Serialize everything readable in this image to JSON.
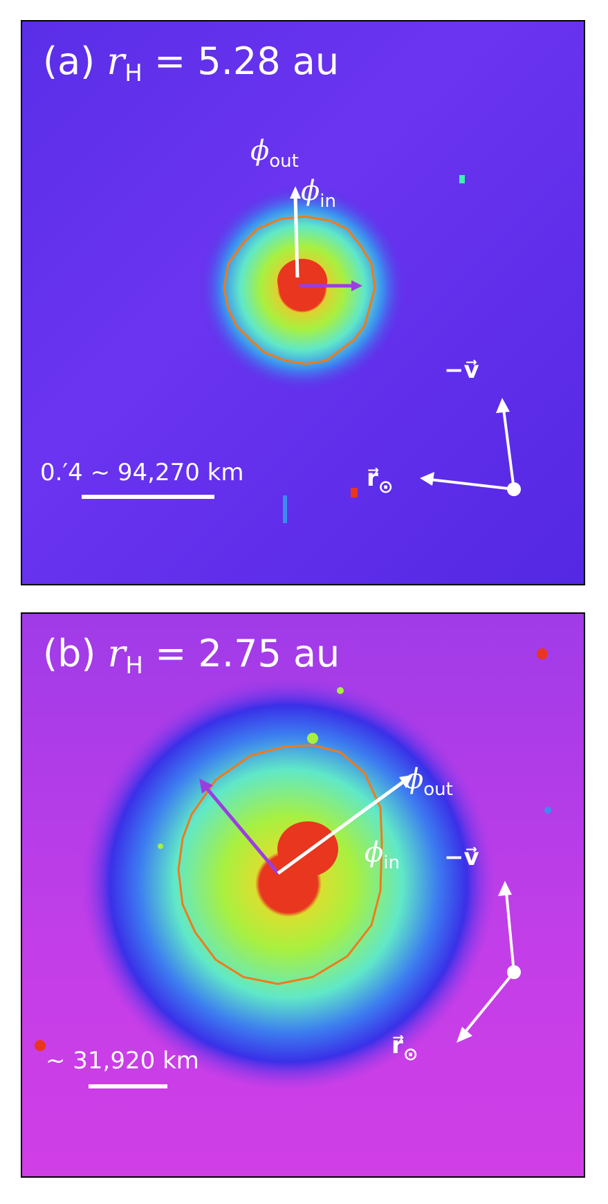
{
  "panels": [
    {
      "title_prefix": "(a) ",
      "title_var": "r",
      "title_sub": "H",
      "title_value": " = 5.28 au",
      "phi_out": {
        "symbol": "ϕ",
        "sub": "out"
      },
      "phi_in": {
        "symbol": "ϕ",
        "sub": "in"
      },
      "scale_label": "0.′4  ~  94,270 km",
      "sun_label": {
        "vec": "r⃗",
        "sub": "⊙"
      },
      "velocity_label": "−v⃗"
    },
    {
      "title_prefix": "(b) ",
      "title_var": "r",
      "title_sub": "H",
      "title_value": " = 2.75 au",
      "phi_out": {
        "symbol": "ϕ",
        "sub": "out"
      },
      "phi_in": {
        "symbol": "ϕ",
        "sub": "in"
      },
      "scale_label": "~ 31,920 km",
      "sun_label": {
        "vec": "r⃗",
        "sub": "⊙"
      },
      "velocity_label": "−v⃗"
    }
  ],
  "colors": {
    "contour": "#f07a1a",
    "phi_in_arrow": "#9b3ee0",
    "arrows": "#ffffff",
    "core": "#e8361f"
  }
}
